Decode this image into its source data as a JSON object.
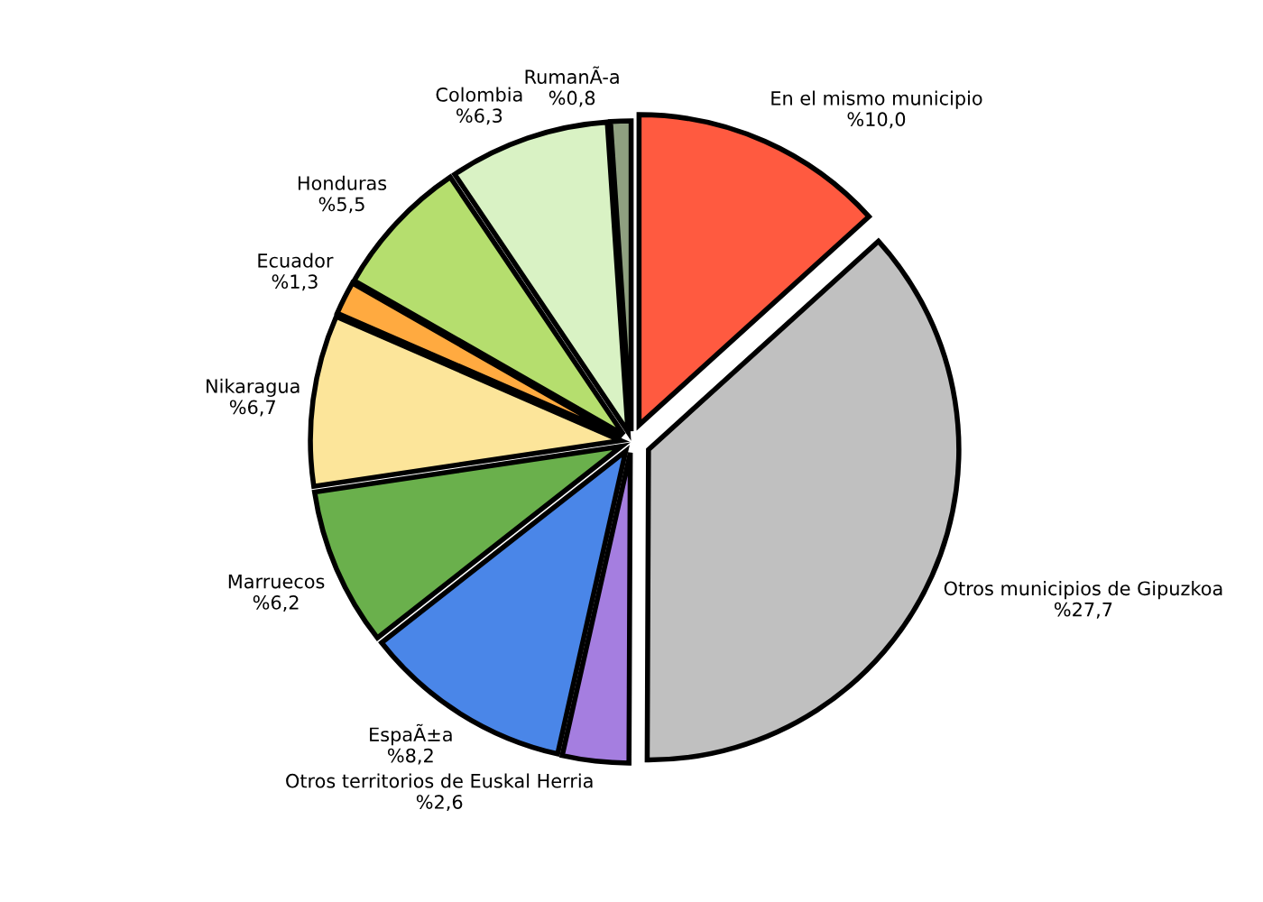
{
  "chart_data": {
    "type": "pie",
    "categories": [
      "En el mismo municipio",
      "Otros municipios de Gipuzkoa",
      "Otros territorios de Euskal Herria",
      "EspaÃ±a",
      "Marruecos",
      "Nikaragua",
      "Ecuador",
      "Honduras",
      "Colombia",
      "RumanÃ-a"
    ],
    "values": [
      10.0,
      27.7,
      2.6,
      8.2,
      6.2,
      6.7,
      1.3,
      5.5,
      6.3,
      0.8
    ],
    "value_labels": [
      "%10,0",
      "%27,7",
      "%2,6",
      "%8,2",
      "%6,2",
      "%6,7",
      "%1,3",
      "%5,5",
      "%6,3",
      "%0,8"
    ],
    "colors": [
      "#ff5a40",
      "#c0c0c0",
      "#a57ee0",
      "#4a86e8",
      "#6ab04c",
      "#fce59a",
      "#ffaa40",
      "#b5de6e",
      "#d9f2c4",
      "#8fa080"
    ],
    "legend": false
  }
}
